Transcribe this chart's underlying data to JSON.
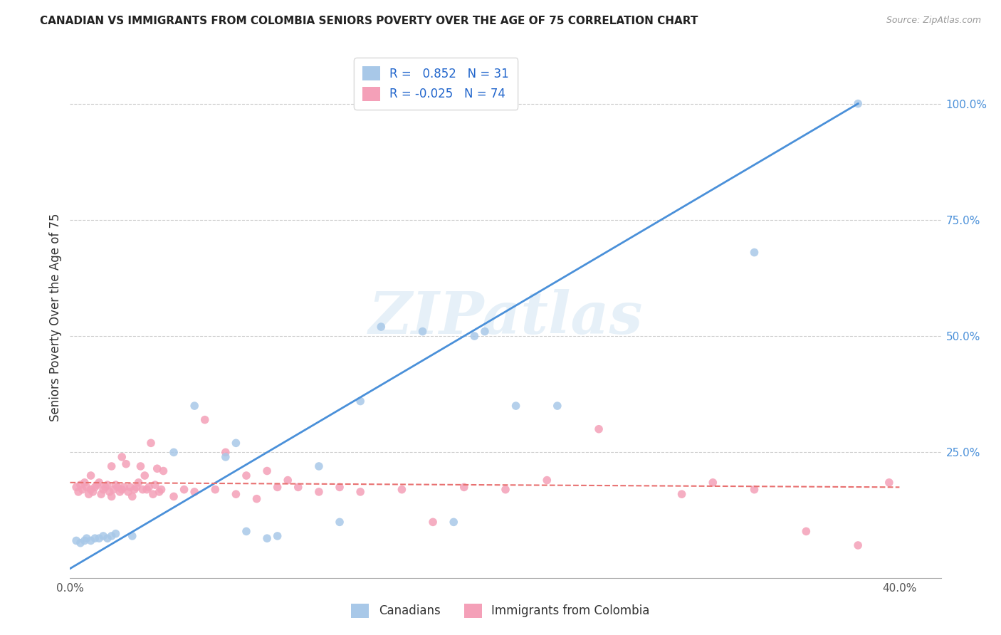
{
  "title": "CANADIAN VS IMMIGRANTS FROM COLOMBIA SENIORS POVERTY OVER THE AGE OF 75 CORRELATION CHART",
  "source": "Source: ZipAtlas.com",
  "ylabel": "Seniors Poverty Over the Age of 75",
  "xlim": [
    0.0,
    0.42
  ],
  "ylim": [
    -0.02,
    1.1
  ],
  "canadians_R": 0.852,
  "canadians_N": 31,
  "colombia_R": -0.025,
  "colombia_N": 74,
  "canadian_color": "#a8c8e8",
  "colombia_color": "#f4a0b8",
  "canadian_line_color": "#4a90d9",
  "colombia_line_color": "#e87070",
  "background_color": "#ffffff",
  "watermark": "ZIPatlas",
  "canadians_x": [
    0.003,
    0.005,
    0.007,
    0.008,
    0.01,
    0.012,
    0.014,
    0.016,
    0.018,
    0.02,
    0.022,
    0.03,
    0.05,
    0.06,
    0.075,
    0.08,
    0.085,
    0.095,
    0.1,
    0.12,
    0.13,
    0.14,
    0.15,
    0.17,
    0.185,
    0.195,
    0.2,
    0.215,
    0.235,
    0.33,
    0.38
  ],
  "canadians_y": [
    0.06,
    0.055,
    0.06,
    0.065,
    0.06,
    0.065,
    0.065,
    0.07,
    0.065,
    0.07,
    0.075,
    0.07,
    0.25,
    0.35,
    0.24,
    0.27,
    0.08,
    0.065,
    0.07,
    0.22,
    0.1,
    0.36,
    0.52,
    0.51,
    0.1,
    0.5,
    0.51,
    0.35,
    0.35,
    0.68,
    1.0
  ],
  "colombia_x": [
    0.003,
    0.004,
    0.005,
    0.006,
    0.007,
    0.008,
    0.009,
    0.01,
    0.01,
    0.011,
    0.012,
    0.013,
    0.014,
    0.015,
    0.016,
    0.017,
    0.018,
    0.019,
    0.02,
    0.02,
    0.021,
    0.022,
    0.023,
    0.024,
    0.025,
    0.025,
    0.026,
    0.027,
    0.028,
    0.029,
    0.03,
    0.031,
    0.032,
    0.033,
    0.034,
    0.035,
    0.036,
    0.037,
    0.038,
    0.039,
    0.04,
    0.041,
    0.042,
    0.043,
    0.044,
    0.045,
    0.05,
    0.055,
    0.06,
    0.065,
    0.07,
    0.075,
    0.08,
    0.085,
    0.09,
    0.095,
    0.1,
    0.105,
    0.11,
    0.12,
    0.13,
    0.14,
    0.16,
    0.175,
    0.19,
    0.21,
    0.23,
    0.255,
    0.295,
    0.31,
    0.33,
    0.355,
    0.38,
    0.395
  ],
  "colombia_y": [
    0.175,
    0.165,
    0.18,
    0.17,
    0.185,
    0.175,
    0.16,
    0.17,
    0.2,
    0.165,
    0.175,
    0.18,
    0.185,
    0.16,
    0.17,
    0.175,
    0.18,
    0.165,
    0.155,
    0.22,
    0.17,
    0.18,
    0.175,
    0.165,
    0.17,
    0.24,
    0.175,
    0.225,
    0.165,
    0.175,
    0.155,
    0.17,
    0.175,
    0.185,
    0.22,
    0.17,
    0.2,
    0.17,
    0.175,
    0.27,
    0.16,
    0.18,
    0.215,
    0.165,
    0.17,
    0.21,
    0.155,
    0.17,
    0.165,
    0.32,
    0.17,
    0.25,
    0.16,
    0.2,
    0.15,
    0.21,
    0.175,
    0.19,
    0.175,
    0.165,
    0.175,
    0.165,
    0.17,
    0.1,
    0.175,
    0.17,
    0.19,
    0.3,
    0.16,
    0.185,
    0.17,
    0.08,
    0.05,
    0.185
  ],
  "can_line_x": [
    0.0,
    0.38
  ],
  "can_line_y": [
    0.0,
    1.0
  ],
  "col_line_x": [
    0.0,
    0.4
  ],
  "col_line_y": [
    0.185,
    0.175
  ]
}
